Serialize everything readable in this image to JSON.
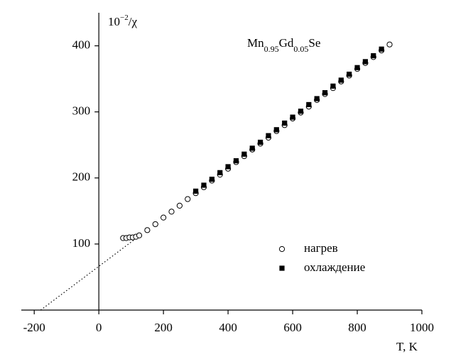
{
  "chart_data": {
    "type": "scatter",
    "y_label_parts": [
      "10",
      "−2",
      "/χ"
    ],
    "x_label": "T, K",
    "formula_parts": [
      "Mn",
      "0.95",
      "Gd",
      "0.05",
      "Se"
    ],
    "xlim": [
      -240,
      1000
    ],
    "ylim": [
      0,
      450
    ],
    "xticks": [
      -200,
      0,
      200,
      400,
      600,
      800,
      1000
    ],
    "yticks": [
      100,
      200,
      300,
      400
    ],
    "series": [
      {
        "name": "нагрев",
        "marker": "circle",
        "color": "#000000",
        "x": [
          75,
          85,
          95,
          105,
          115,
          125,
          150,
          175,
          200,
          225,
          250,
          275,
          300,
          325,
          350,
          375,
          400,
          425,
          450,
          475,
          500,
          525,
          550,
          575,
          600,
          625,
          650,
          675,
          700,
          725,
          750,
          775,
          800,
          825,
          850,
          875,
          900
        ],
        "values": [
          109,
          109,
          110,
          110,
          111,
          113,
          121,
          130,
          140,
          149,
          158,
          168,
          177,
          186,
          196,
          205,
          214,
          224,
          233,
          243,
          252,
          261,
          271,
          280,
          290,
          299,
          308,
          318,
          327,
          336,
          346,
          355,
          365,
          374,
          383,
          393,
          402
        ]
      },
      {
        "name": "охлаждение",
        "marker": "square",
        "color": "#000000",
        "x": [
          300,
          325,
          350,
          375,
          400,
          425,
          450,
          475,
          500,
          525,
          550,
          575,
          600,
          625,
          650,
          675,
          700,
          725,
          750,
          775,
          800,
          825,
          850,
          875
        ],
        "values": [
          180,
          189,
          198,
          208,
          217,
          226,
          236,
          245,
          254,
          264,
          273,
          283,
          292,
          301,
          311,
          320,
          329,
          339,
          348,
          357,
          367,
          376,
          385,
          395
        ]
      }
    ],
    "extrapolation": {
      "x": [
        -180,
        130
      ],
      "values": [
        0,
        114
      ]
    }
  }
}
